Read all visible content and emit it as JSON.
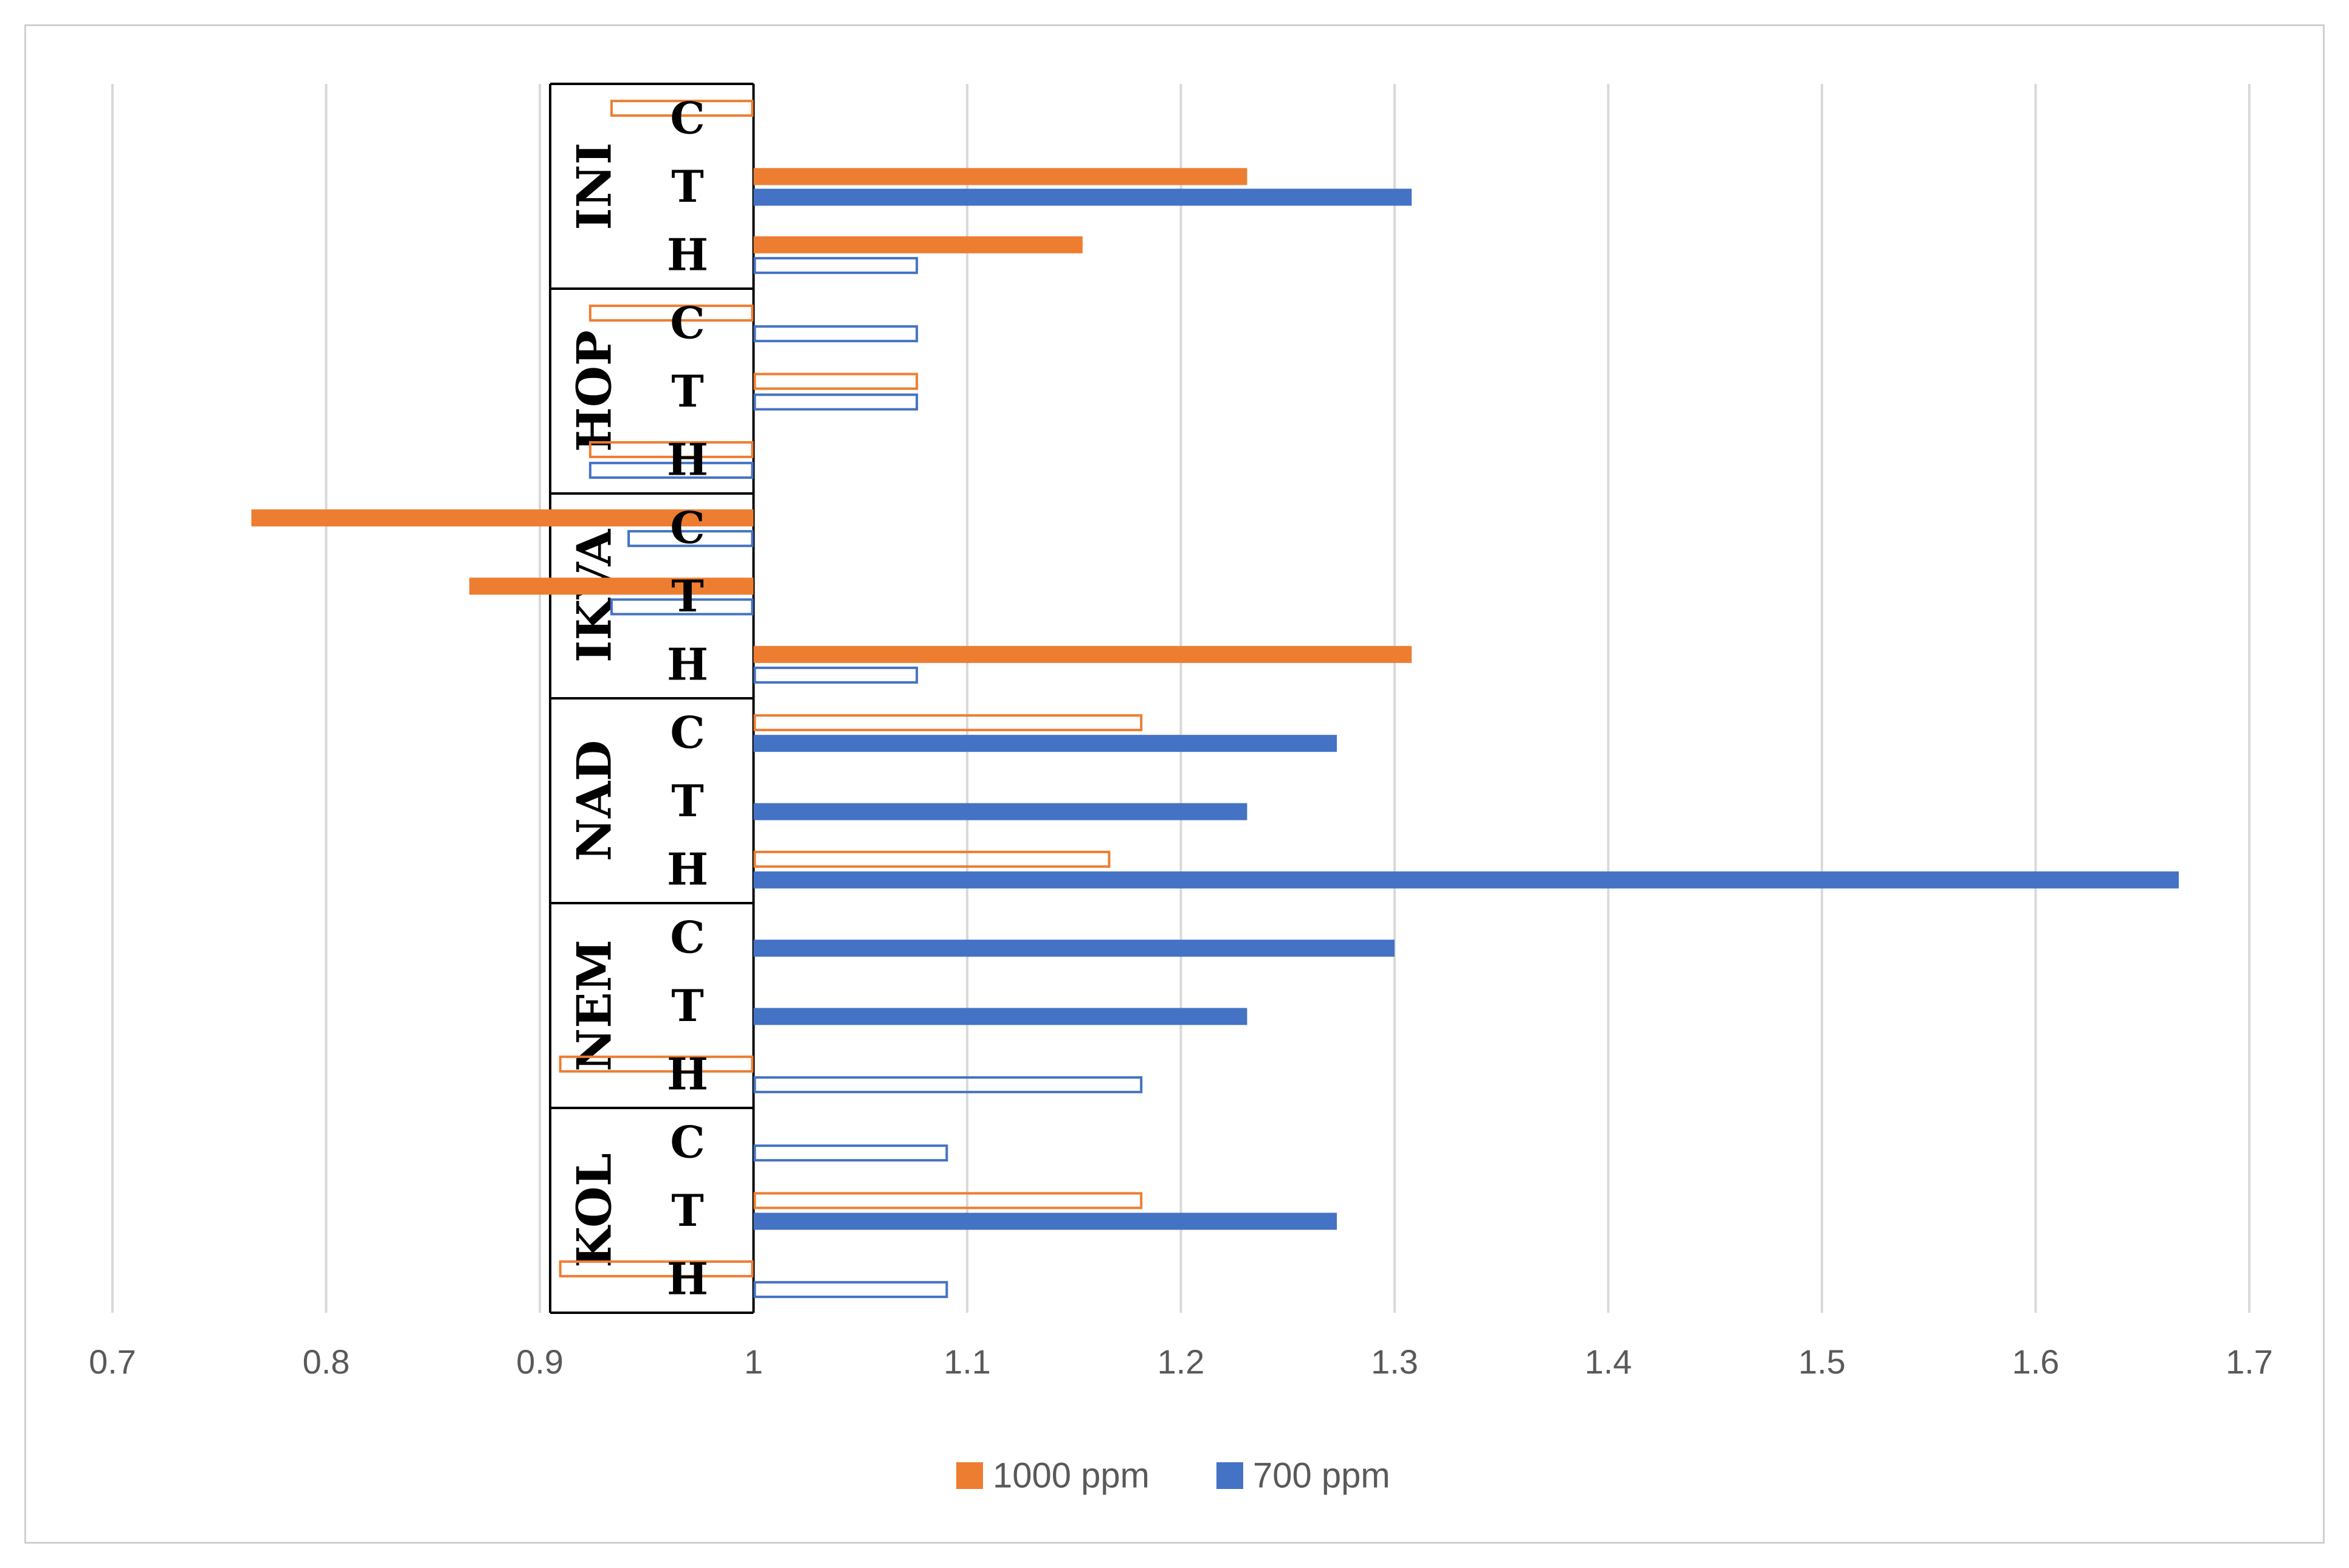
{
  "chart_data": {
    "type": "bar",
    "orientation": "horizontal",
    "base_value": 1,
    "xlim": [
      0.7,
      1.7
    ],
    "x_ticks": [
      "0.7",
      "0.8",
      "0.9",
      "1",
      "1.1",
      "1.2",
      "1.3",
      "1.4",
      "1.5",
      "1.6",
      "1.7"
    ],
    "grid": true,
    "legend_position": "bottom",
    "series": [
      {
        "name": "1000 ppm",
        "color": "#ED7D31"
      },
      {
        "name": "700 ppm",
        "color": "#4472C4"
      }
    ],
    "groups": [
      {
        "name": "INI",
        "rows": [
          {
            "label": "C",
            "values": {
              "1000 ppm": {
                "value": 0.933,
                "filled": false
              },
              "700 ppm": null
            }
          },
          {
            "label": "T",
            "values": {
              "1000 ppm": {
                "value": 1.231,
                "filled": true
              },
              "700 ppm": {
                "value": 1.308,
                "filled": true
              }
            }
          },
          {
            "label": "H",
            "values": {
              "1000 ppm": {
                "value": 1.154,
                "filled": true
              },
              "700 ppm": {
                "value": 1.077,
                "filled": false
              }
            }
          }
        ]
      },
      {
        "name": "HOP",
        "rows": [
          {
            "label": "C",
            "values": {
              "1000 ppm": {
                "value": 0.923,
                "filled": false
              },
              "700 ppm": {
                "value": 1.077,
                "filled": false
              }
            }
          },
          {
            "label": "T",
            "values": {
              "1000 ppm": {
                "value": 1.077,
                "filled": false
              },
              "700 ppm": {
                "value": 1.077,
                "filled": false
              }
            }
          },
          {
            "label": "H",
            "values": {
              "1000 ppm": {
                "value": 0.923,
                "filled": false
              },
              "700 ppm": {
                "value": 0.923,
                "filled": false
              }
            }
          }
        ]
      },
      {
        "name": "IKVA",
        "rows": [
          {
            "label": "C",
            "values": {
              "1000 ppm": {
                "value": 0.765,
                "filled": true
              },
              "700 ppm": {
                "value": 0.941,
                "filled": false
              }
            }
          },
          {
            "label": "T",
            "values": {
              "1000 ppm": {
                "value": 0.867,
                "filled": true
              },
              "700 ppm": {
                "value": 0.933,
                "filled": false
              }
            }
          },
          {
            "label": "H",
            "values": {
              "1000 ppm": {
                "value": 1.308,
                "filled": true
              },
              "700 ppm": {
                "value": 1.077,
                "filled": false
              }
            }
          }
        ]
      },
      {
        "name": "NAD",
        "rows": [
          {
            "label": "C",
            "values": {
              "1000 ppm": {
                "value": 1.182,
                "filled": false
              },
              "700 ppm": {
                "value": 1.273,
                "filled": true
              }
            }
          },
          {
            "label": "T",
            "values": {
              "1000 ppm": null,
              "700 ppm": {
                "value": 1.231,
                "filled": true
              }
            }
          },
          {
            "label": "H",
            "values": {
              "1000 ppm": {
                "value": 1.167,
                "filled": false
              },
              "700 ppm": {
                "value": 1.667,
                "filled": true
              }
            }
          }
        ]
      },
      {
        "name": "NEM",
        "rows": [
          {
            "label": "C",
            "values": {
              "1000 ppm": null,
              "700 ppm": {
                "value": 1.3,
                "filled": true
              }
            }
          },
          {
            "label": "T",
            "values": {
              "1000 ppm": null,
              "700 ppm": {
                "value": 1.231,
                "filled": true
              }
            }
          },
          {
            "label": "H",
            "values": {
              "1000 ppm": {
                "value": 0.909,
                "filled": false
              },
              "700 ppm": {
                "value": 1.182,
                "filled": false
              }
            }
          }
        ]
      },
      {
        "name": "KOL",
        "rows": [
          {
            "label": "C",
            "values": {
              "1000 ppm": null,
              "700 ppm": {
                "value": 1.091,
                "filled": false
              }
            }
          },
          {
            "label": "T",
            "values": {
              "1000 ppm": {
                "value": 1.182,
                "filled": false
              },
              "700 ppm": {
                "value": 1.273,
                "filled": true
              }
            }
          },
          {
            "label": "H",
            "values": {
              "1000 ppm": {
                "value": 0.909,
                "filled": false
              },
              "700 ppm": {
                "value": 1.091,
                "filled": false
              }
            }
          }
        ]
      }
    ]
  }
}
